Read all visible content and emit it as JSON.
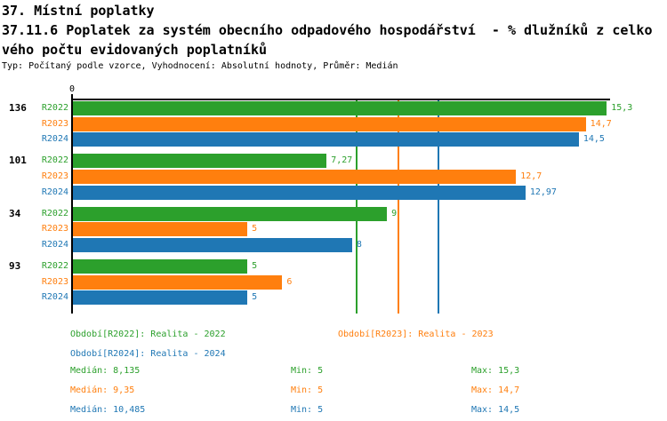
{
  "header": {
    "line1": "37. Místní poplatky",
    "line2": "37.11.6 Poplatek za systém obecního odpadového hospodářství  - % dlužníků z celko",
    "line3": "vého počtu evidovaných poplatníků",
    "meta": "Typ: Počítaný podle vzorce, Vyhodnocení: Absolutní hodnoty, Průměr: Medián"
  },
  "colors": {
    "green": "#2ca02c",
    "orange": "#ff7f0e",
    "blue": "#1f77b4",
    "axis": "#000000",
    "background": "#ffffff"
  },
  "chart_data": {
    "type": "bar",
    "orientation": "horizontal",
    "title": "37.11.6 Poplatek za systém obecního odpadového hospodářství - % dlužníků z celkového počtu evidovaných poplatníků",
    "categories": [
      "136",
      "101",
      "34",
      "93"
    ],
    "series": [
      {
        "short": "R2022",
        "name": "Období[R2022]: Realita - 2022",
        "color": "#2ca02c",
        "values": [
          15.3,
          7.27,
          9,
          5
        ],
        "labels": [
          "15,3",
          "7,27",
          "9",
          "5"
        ],
        "median": 8.135,
        "min": 5,
        "max": 15.3
      },
      {
        "short": "R2023",
        "name": "Období[R2023]: Realita - 2023",
        "color": "#ff7f0e",
        "values": [
          14.7,
          12.7,
          5,
          6
        ],
        "labels": [
          "14,7",
          "12,7",
          "5",
          "6"
        ],
        "median": 9.35,
        "min": 5,
        "max": 14.7
      },
      {
        "short": "R2024",
        "name": "Období[R2024]: Realita - 2024",
        "color": "#1f77b4",
        "values": [
          14.5,
          12.97,
          8,
          5
        ],
        "labels": [
          "14,5",
          "12,97",
          "8",
          "5"
        ],
        "median": 10.485,
        "min": 5,
        "max": 14.5
      }
    ],
    "axis": {
      "origin_label": "0",
      "x_min": 0,
      "x_max": 15.45,
      "grid": false
    },
    "legend_position": "bottom"
  },
  "stats": {
    "rows": [
      {
        "median": "Medián: 8,135",
        "min": "Min: 5",
        "max": "Max: 15,3"
      },
      {
        "median": "Medián: 9,35",
        "min": "Min: 5",
        "max": "Max: 14,7"
      },
      {
        "median": "Medián: 10,485",
        "min": "Min: 5",
        "max": "Max: 14,5"
      }
    ]
  }
}
